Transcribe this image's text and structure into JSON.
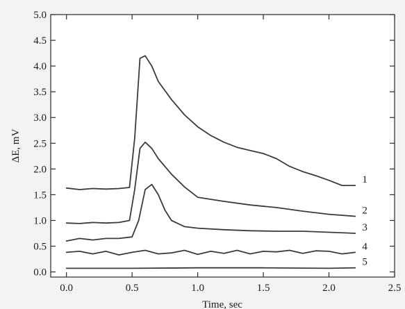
{
  "chart_data": {
    "type": "line",
    "xlabel": "Time, sec",
    "ylabel": "ΔE, mV",
    "xlim": [
      -0.12,
      2.5
    ],
    "ylim": [
      -0.1,
      5.0
    ],
    "xticks": [
      0.0,
      0.5,
      1.0,
      1.5,
      2.0,
      2.5
    ],
    "xtick_labels": [
      "0.0",
      "0.5",
      "1.0",
      "1.5",
      "2.0",
      "2.5"
    ],
    "yticks": [
      0.0,
      0.5,
      1.0,
      1.5,
      2.0,
      2.5,
      3.0,
      3.5,
      4.0,
      4.5,
      5.0
    ],
    "ytick_labels": [
      "0.0",
      "0.5",
      "1.0",
      "1.5",
      "2.0",
      "2.5",
      "3.0",
      "3.5",
      "4.0",
      "4.5",
      "5.0"
    ],
    "grid": false,
    "series": [
      {
        "name": "1",
        "x": [
          0.0,
          0.1,
          0.2,
          0.3,
          0.4,
          0.48,
          0.52,
          0.56,
          0.6,
          0.65,
          0.7,
          0.8,
          0.9,
          1.0,
          1.1,
          1.2,
          1.3,
          1.4,
          1.5,
          1.6,
          1.7,
          1.8,
          1.9,
          2.0,
          2.1,
          2.2
        ],
        "y": [
          1.63,
          1.6,
          1.62,
          1.61,
          1.62,
          1.64,
          2.6,
          4.15,
          4.2,
          4.0,
          3.7,
          3.35,
          3.05,
          2.82,
          2.65,
          2.52,
          2.42,
          2.36,
          2.3,
          2.2,
          2.05,
          1.95,
          1.87,
          1.78,
          1.68,
          1.68
        ]
      },
      {
        "name": "2",
        "x": [
          0.0,
          0.1,
          0.2,
          0.3,
          0.4,
          0.48,
          0.52,
          0.56,
          0.6,
          0.65,
          0.7,
          0.8,
          0.9,
          1.0,
          1.2,
          1.4,
          1.6,
          1.8,
          2.0,
          2.2
        ],
        "y": [
          0.95,
          0.94,
          0.96,
          0.95,
          0.96,
          1.0,
          1.6,
          2.4,
          2.52,
          2.4,
          2.2,
          1.9,
          1.65,
          1.45,
          1.37,
          1.3,
          1.25,
          1.18,
          1.12,
          1.08
        ]
      },
      {
        "name": "3",
        "x": [
          0.0,
          0.1,
          0.2,
          0.3,
          0.4,
          0.5,
          0.55,
          0.6,
          0.65,
          0.7,
          0.75,
          0.8,
          0.9,
          1.0,
          1.2,
          1.4,
          1.6,
          1.8,
          2.0,
          2.2
        ],
        "y": [
          0.6,
          0.65,
          0.62,
          0.65,
          0.65,
          0.68,
          1.0,
          1.6,
          1.7,
          1.5,
          1.2,
          1.0,
          0.88,
          0.85,
          0.82,
          0.8,
          0.79,
          0.79,
          0.77,
          0.75
        ]
      },
      {
        "name": "4",
        "x": [
          0.0,
          0.1,
          0.2,
          0.3,
          0.4,
          0.5,
          0.6,
          0.7,
          0.8,
          0.9,
          1.0,
          1.1,
          1.2,
          1.3,
          1.4,
          1.5,
          1.6,
          1.7,
          1.8,
          1.9,
          2.0,
          2.1,
          2.2
        ],
        "y": [
          0.38,
          0.4,
          0.35,
          0.4,
          0.33,
          0.38,
          0.42,
          0.35,
          0.37,
          0.42,
          0.34,
          0.4,
          0.36,
          0.42,
          0.35,
          0.4,
          0.39,
          0.42,
          0.36,
          0.41,
          0.4,
          0.35,
          0.38
        ]
      },
      {
        "name": "5",
        "x": [
          0.0,
          0.5,
          1.0,
          1.5,
          2.0,
          2.2
        ],
        "y": [
          0.07,
          0.07,
          0.08,
          0.08,
          0.07,
          0.08
        ]
      }
    ]
  }
}
